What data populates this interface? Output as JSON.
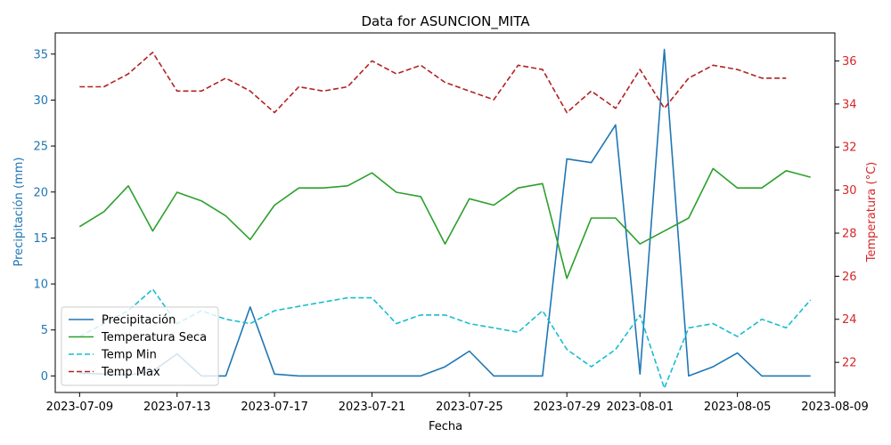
{
  "chart_data": {
    "type": "line",
    "title": "Data for ASUNCION_MITA",
    "xlabel": "Fecha",
    "ylabel_left": "Precipitación (mm)",
    "ylabel_right": "Temperatura (°C)",
    "x_start": "2023-07-09",
    "x_ticks": [
      "2023-07-09",
      "2023-07-13",
      "2023-07-17",
      "2023-07-21",
      "2023-07-25",
      "2023-07-29",
      "2023-08-01",
      "2023-08-05",
      "2023-08-09"
    ],
    "yleft_ticks": [
      0,
      5,
      10,
      15,
      20,
      25,
      30,
      35
    ],
    "yright_ticks": [
      22,
      24,
      26,
      28,
      30,
      32,
      34,
      36
    ],
    "xlim": [
      "2023-07-08T00:00",
      "2023-08-09T00:00"
    ],
    "ylim_left": [
      -1.8,
      37.3
    ],
    "ylim_right": [
      20.6,
      37.3
    ],
    "legend_position": "lower-left",
    "colors": {
      "precip": "#1f77b4",
      "temp_seca": "#2ca02c",
      "temp_min": "#17becf",
      "temp_max": "#b22222",
      "left_axis": "#1f77b4",
      "right_axis": "#d62728"
    },
    "series": [
      {
        "name": "Precipitación",
        "axis": "left",
        "style": "solid",
        "x": [
          "2023-07-09",
          "2023-07-10",
          "2023-07-11",
          "2023-07-12",
          "2023-07-13",
          "2023-07-14",
          "2023-07-15",
          "2023-07-16",
          "2023-07-17",
          "2023-07-18",
          "2023-07-19",
          "2023-07-20",
          "2023-07-21",
          "2023-07-22",
          "2023-07-23",
          "2023-07-24",
          "2023-07-25",
          "2023-07-26",
          "2023-07-27",
          "2023-07-28",
          "2023-07-29",
          "2023-07-30",
          "2023-07-31",
          "2023-08-01",
          "2023-08-02",
          "2023-08-03",
          "2023-08-04",
          "2023-08-05",
          "2023-08-06",
          "2023-08-07",
          "2023-08-08"
        ],
        "values": [
          0.3,
          0.2,
          0.1,
          0.5,
          2.4,
          0.0,
          0.0,
          7.5,
          0.2,
          0.0,
          0.0,
          0.0,
          0.0,
          0.0,
          0.0,
          1.0,
          2.7,
          0.0,
          0.0,
          0.0,
          23.6,
          23.2,
          27.3,
          0.2,
          35.5,
          0.0,
          1.0,
          2.5,
          0.0,
          0.0,
          0.0
        ]
      },
      {
        "name": "Temperatura Seca",
        "axis": "right",
        "style": "solid",
        "x": [
          "2023-07-09",
          "2023-07-10",
          "2023-07-11",
          "2023-07-12",
          "2023-07-13",
          "2023-07-14",
          "2023-07-15",
          "2023-07-16",
          "2023-07-17",
          "2023-07-18",
          "2023-07-19",
          "2023-07-20",
          "2023-07-21",
          "2023-07-22",
          "2023-07-23",
          "2023-07-24",
          "2023-07-25",
          "2023-07-26",
          "2023-07-27",
          "2023-07-28",
          "2023-07-29",
          "2023-07-30",
          "2023-07-31",
          "2023-08-01",
          "2023-08-02",
          "2023-08-03",
          "2023-08-04",
          "2023-08-05",
          "2023-08-06",
          "2023-08-07",
          "2023-08-08"
        ],
        "values": [
          28.3,
          29.0,
          30.2,
          28.1,
          29.9,
          29.5,
          28.8,
          27.7,
          29.3,
          30.1,
          30.1,
          30.2,
          30.8,
          29.9,
          29.7,
          27.5,
          29.6,
          29.3,
          30.1,
          30.3,
          25.9,
          28.7,
          28.7,
          27.5,
          28.1,
          28.7,
          31.0,
          30.1,
          30.1,
          30.9,
          30.6
        ]
      },
      {
        "name": "Temp Min",
        "axis": "right",
        "style": "dashed",
        "x": [
          "2023-07-09",
          "2023-07-10",
          "2023-07-11",
          "2023-07-12",
          "2023-07-13",
          "2023-07-14",
          "2023-07-15",
          "2023-07-16",
          "2023-07-17",
          "2023-07-18",
          "2023-07-19",
          "2023-07-20",
          "2023-07-21",
          "2023-07-22",
          "2023-07-23",
          "2023-07-24",
          "2023-07-25",
          "2023-07-26",
          "2023-07-27",
          "2023-07-28",
          "2023-07-29",
          "2023-07-30",
          "2023-07-31",
          "2023-08-01",
          "2023-08-02",
          "2023-08-03",
          "2023-08-04",
          "2023-08-05",
          "2023-08-06",
          "2023-08-07",
          "2023-08-08"
        ],
        "values": [
          23.2,
          23.8,
          24.4,
          25.4,
          23.8,
          24.4,
          24.0,
          23.8,
          24.4,
          24.6,
          24.8,
          25.0,
          25.0,
          23.8,
          24.2,
          24.2,
          23.8,
          23.6,
          23.4,
          24.4,
          22.6,
          21.8,
          22.6,
          24.2,
          20.8,
          23.6,
          23.8,
          23.2,
          24.0,
          23.6,
          24.9
        ]
      },
      {
        "name": "Temp Max",
        "axis": "right",
        "style": "dashed",
        "x": [
          "2023-07-09",
          "2023-07-10",
          "2023-07-11",
          "2023-07-12",
          "2023-07-13",
          "2023-07-14",
          "2023-07-15",
          "2023-07-16",
          "2023-07-17",
          "2023-07-18",
          "2023-07-19",
          "2023-07-20",
          "2023-07-21",
          "2023-07-22",
          "2023-07-23",
          "2023-07-24",
          "2023-07-25",
          "2023-07-26",
          "2023-07-27",
          "2023-07-28",
          "2023-07-29",
          "2023-07-30",
          "2023-07-31",
          "2023-08-01",
          "2023-08-02",
          "2023-08-03",
          "2023-08-04",
          "2023-08-05",
          "2023-08-06",
          "2023-08-07"
        ],
        "values": [
          34.8,
          34.8,
          35.4,
          36.4,
          34.6,
          34.6,
          35.2,
          34.6,
          33.6,
          34.8,
          34.6,
          34.8,
          36.0,
          35.4,
          35.8,
          35.0,
          34.6,
          34.2,
          35.8,
          35.6,
          33.6,
          34.6,
          33.8,
          35.6,
          33.8,
          35.2,
          35.8,
          35.6,
          35.2,
          35.2
        ]
      }
    ]
  }
}
